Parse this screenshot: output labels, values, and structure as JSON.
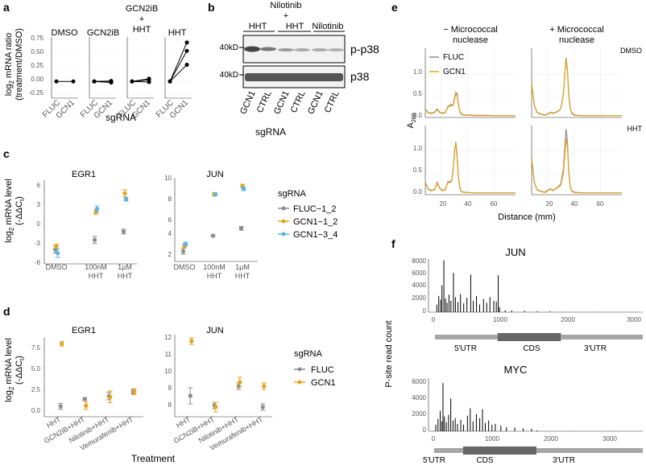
{
  "colors": {
    "fluc": "#8c8c8c",
    "gcn1": "#e6a219",
    "gcn13": "#56b4e9",
    "axis": "#333333",
    "grid": "#ebebeb"
  },
  "panel_a": {
    "letter": "a",
    "ylabel_line1": "log",
    "ylabel_sub": "2",
    "ylabel_line1b": " mRNA ratio",
    "ylabel_line2": "(treatment/DMSO)",
    "xlabel": "sgRNA",
    "conditions": [
      "DMSO",
      "GCN2iB",
      "GCN2iB",
      "+",
      "HHT",
      "HHT"
    ],
    "ticklabels": [
      "FLUC",
      "GCN1"
    ],
    "yticks": [
      "0.75",
      "0.50",
      "0.25",
      "0.00",
      "-0.25"
    ]
  },
  "panel_b": {
    "letter": "b",
    "header_top": "Nilotinib",
    "header_plus": "+",
    "groups": [
      "HHT",
      "HHT",
      "Nilotinib"
    ],
    "size_top": "40kD",
    "size_bottom": "40kD",
    "band_top": "p-p38",
    "band_bottom": "p38",
    "lanes": [
      "GCN1",
      "CTRL",
      "GCN1",
      "CTRL",
      "GCN1",
      "CTRL"
    ],
    "xlabel": "sgRNA"
  },
  "panel_c": {
    "letter": "c",
    "titles": [
      "EGR1",
      "JUN"
    ],
    "ylabel_line1": "log",
    "ylabel_sub": "2",
    "ylabel_line1b": " mRNA level",
    "ylabel_line2": "(-ΔΔC",
    "ylabel_line2_sub": "t",
    "ylabel_line2_end": ")",
    "categories": [
      "DMSO",
      "100nM",
      "1μM"
    ],
    "categories_line2": [
      "",
      "HHT",
      "HHT"
    ],
    "left_yticks": [
      "6",
      "3",
      "0",
      "-3",
      "-6"
    ],
    "right_yticks": [
      "10",
      "8",
      "6",
      "4",
      "2"
    ],
    "legend_title": "sgRNA",
    "legend": [
      "FLUC−1_2",
      "GCN1−1_2",
      "GCN1−3_4"
    ]
  },
  "panel_d": {
    "letter": "d",
    "titles": [
      "EGR1",
      "JUN"
    ],
    "ylabel_line1": "log",
    "ylabel_sub": "2",
    "ylabel_line1b": " mRNA level",
    "ylabel_line2": "(-ΔΔC",
    "ylabel_line2_sub": "t",
    "ylabel_line2_end": ")",
    "categories": [
      "HHT",
      "GCN2iB+HHT",
      "Nilotinib+HHT",
      "Vemurafenib+HHT"
    ],
    "left_yticks": [
      "7.5",
      "5.0",
      "2.5",
      "0.0"
    ],
    "right_yticks": [
      "12",
      "11",
      "10",
      "9",
      "8"
    ],
    "xlabel": "Treatment",
    "legend_title": "sgRNA",
    "legend": [
      "FLUC",
      "GCN1"
    ]
  },
  "panel_e": {
    "letter": "e",
    "col_titles": [
      "− Micrococcal",
      "+ Micrococcal"
    ],
    "col_titles_line2": [
      "nuclease",
      "nuclease"
    ],
    "row_labels": [
      "DMSO",
      "HHT"
    ],
    "ylabel": "A",
    "ylabel_sub": "260",
    "xlabel": "Distance (mm)",
    "yticks": [
      "1.0",
      "0.5",
      "0.0"
    ],
    "yticks_top": [
      "1.0",
      "0.5",
      "0.0"
    ],
    "xticks": [
      "20",
      "40",
      "60"
    ],
    "legend": [
      "FLUC",
      "GCN1"
    ]
  },
  "panel_f": {
    "letter": "f",
    "ylabel": "P-site read count",
    "jun": {
      "title": "JUN",
      "yticks": [
        "8000",
        "6000",
        "4000",
        "2000",
        "0"
      ],
      "xticks": [
        "0",
        "1000",
        "2000",
        "3000"
      ],
      "regions": [
        "5′UTR",
        "CDS",
        "3′UTR"
      ]
    },
    "myc": {
      "title": "MYC",
      "yticks": [
        "6000",
        "4000",
        "2000",
        "0"
      ],
      "xticks": [
        "0",
        "1000",
        "2000",
        "3000"
      ],
      "regions": [
        "5′UTR",
        "CDS",
        "3′UTR"
      ]
    }
  },
  "chart_data": [
    {
      "type": "line",
      "panel": "a",
      "ylabel": "log2 mRNA ratio (treatment/DMSO)",
      "xlabel": "sgRNA",
      "ylim": [
        -0.3,
        0.8
      ],
      "groups": [
        {
          "condition": "DMSO",
          "categories": [
            "FLUC",
            "GCN1"
          ],
          "replicates": [
            [
              0.0,
              0.0
            ]
          ]
        },
        {
          "condition": "GCN2iB",
          "categories": [
            "FLUC",
            "GCN1"
          ],
          "replicates": [
            [
              0.0,
              0.01
            ],
            [
              0.0,
              -0.02
            ],
            [
              0.0,
              0.0
            ]
          ]
        },
        {
          "condition": "GCN2iB + HHT",
          "categories": [
            "FLUC",
            "GCN1"
          ],
          "replicates": [
            [
              0.0,
              0.03
            ],
            [
              0.0,
              -0.01
            ],
            [
              0.0,
              0.05
            ]
          ]
        },
        {
          "condition": "HHT",
          "categories": [
            "FLUC",
            "GCN1"
          ],
          "replicates": [
            [
              0.0,
              0.7
            ],
            [
              0.0,
              0.55
            ],
            [
              0.0,
              0.3
            ]
          ]
        }
      ]
    },
    {
      "type": "scatter",
      "panel": "c",
      "title": "EGR1",
      "categories": [
        "DMSO",
        "100nM HHT",
        "1μM HHT"
      ],
      "ylim": [
        -6.5,
        7.5
      ],
      "series": [
        {
          "name": "FLUC−1_2",
          "values": [
            -4.1,
            -2.5,
            -1.1
          ],
          "errors": [
            0.6,
            0.6,
            0.4
          ]
        },
        {
          "name": "GCN1−1_2",
          "values": [
            -3.6,
            2.2,
            5.3
          ],
          "errors": [
            0.4,
            0.4,
            0.6
          ]
        },
        {
          "name": "GCN1−3_4",
          "values": [
            -4.7,
            2.7,
            4.3
          ],
          "errors": [
            0.7,
            0.5,
            0.3
          ]
        }
      ]
    },
    {
      "type": "scatter",
      "panel": "c",
      "title": "JUN",
      "categories": [
        "DMSO",
        "100nM HHT",
        "1μM HHT"
      ],
      "ylim": [
        1.2,
        10.3
      ],
      "series": [
        {
          "name": "FLUC−1_2",
          "values": [
            2.3,
            4.0,
            4.8
          ],
          "errors": [
            0.3,
            0.1,
            0.2
          ]
        },
        {
          "name": "GCN1−1_2",
          "values": [
            2.9,
            8.5,
            9.4
          ],
          "errors": [
            0.2,
            0.2,
            0.2
          ]
        },
        {
          "name": "GCN1−3_4",
          "values": [
            3.1,
            8.5,
            9.1
          ],
          "errors": [
            0.2,
            0.1,
            0.2
          ]
        }
      ]
    },
    {
      "type": "scatter",
      "panel": "d",
      "title": "EGR1",
      "categories": [
        "HHT",
        "GCN2iB+HHT",
        "Nilotinib+HHT",
        "Vemurafenib+HHT"
      ],
      "ylim": [
        -0.9,
        9.8
      ],
      "series": [
        {
          "name": "FLUC",
          "values": [
            0.5,
            1.5,
            1.9,
            2.5
          ],
          "errors": [
            0.4,
            0.2,
            0.5,
            0.3
          ]
        },
        {
          "name": "GCN1",
          "values": [
            9.0,
            0.6,
            1.8,
            2.5
          ],
          "errors": [
            0.3,
            0.5,
            0.8,
            0.4
          ]
        }
      ]
    },
    {
      "type": "scatter",
      "panel": "d",
      "title": "JUN",
      "categories": [
        "HHT",
        "GCN2iB+HHT",
        "Nilotinib+HHT",
        "Vemurafenib+HHT"
      ],
      "ylim": [
        7.2,
        12.3
      ],
      "series": [
        {
          "name": "FLUC",
          "values": [
            8.5,
            7.9,
            9.1,
            7.8
          ],
          "errors": [
            0.5,
            0.2,
            0.2,
            0.2
          ]
        },
        {
          "name": "GCN1",
          "values": [
            11.9,
            7.8,
            9.35,
            9.1
          ],
          "errors": [
            0.2,
            0.3,
            0.3,
            0.2
          ]
        }
      ]
    },
    {
      "type": "line",
      "panel": "e",
      "xlabel": "Distance (mm)",
      "ylabel": "A260",
      "xlim": [
        8,
        76
      ],
      "panels": [
        {
          "column": "− Micrococcal nuclease",
          "row": "DMSO",
          "x": [
            8,
            10,
            12,
            15,
            17,
            19,
            21,
            23,
            25,
            27,
            28,
            29,
            30,
            31,
            32,
            33,
            34,
            35,
            37,
            40,
            45,
            50,
            55,
            60,
            65,
            70,
            76
          ],
          "FLUC": [
            0.2,
            0.12,
            0.1,
            0.12,
            0.2,
            0.12,
            0.1,
            0.12,
            0.25,
            0.3,
            0.28,
            0.3,
            0.45,
            0.58,
            0.55,
            0.3,
            0.15,
            0.08,
            0.06,
            0.06,
            0.05,
            0.05,
            0.05,
            0.04,
            0.04,
            0.04,
            0.04
          ],
          "GCN1": [
            0.18,
            0.11,
            0.09,
            0.11,
            0.18,
            0.11,
            0.09,
            0.11,
            0.23,
            0.28,
            0.26,
            0.28,
            0.42,
            0.55,
            0.5,
            0.28,
            0.13,
            0.07,
            0.05,
            0.05,
            0.04,
            0.04,
            0.04,
            0.04,
            0.04,
            0.04,
            0.04
          ]
        },
        {
          "column": "+ Micrococcal nuclease",
          "row": "DMSO",
          "x": [
            8,
            10,
            12,
            15,
            18,
            20,
            22,
            24,
            26,
            28,
            30,
            32,
            33,
            34,
            35,
            36,
            37,
            38,
            40,
            43,
            50,
            55,
            60,
            65,
            70,
            76
          ],
          "FLUC": [
            0.8,
            0.3,
            0.12,
            0.08,
            0.06,
            0.08,
            0.12,
            0.1,
            0.12,
            0.15,
            0.2,
            0.55,
            1.0,
            1.38,
            1.1,
            0.55,
            0.25,
            0.12,
            0.06,
            0.05,
            0.04,
            0.04,
            0.04,
            0.04,
            0.04,
            0.04
          ],
          "GCN1": [
            0.78,
            0.28,
            0.11,
            0.07,
            0.05,
            0.07,
            0.11,
            0.09,
            0.11,
            0.14,
            0.2,
            0.56,
            1.02,
            1.32,
            1.08,
            0.5,
            0.22,
            0.1,
            0.05,
            0.04,
            0.04,
            0.04,
            0.04,
            0.04,
            0.04,
            0.04
          ]
        },
        {
          "column": "− Micrococcal nuclease",
          "row": "HHT",
          "x": [
            8,
            10,
            12,
            15,
            17,
            19,
            21,
            23,
            25,
            27,
            28,
            29,
            30,
            31,
            32,
            33,
            34,
            35,
            37,
            40,
            45,
            50,
            55,
            60,
            65,
            70,
            76
          ],
          "FLUC": [
            0.3,
            0.14,
            0.1,
            0.12,
            0.28,
            0.15,
            0.1,
            0.12,
            0.3,
            0.3,
            0.35,
            0.6,
            1.0,
            1.22,
            0.9,
            0.4,
            0.18,
            0.08,
            0.06,
            0.05,
            0.04,
            0.04,
            0.04,
            0.04,
            0.04,
            0.04,
            0.04
          ],
          "GCN1": [
            0.28,
            0.13,
            0.09,
            0.11,
            0.26,
            0.14,
            0.09,
            0.11,
            0.28,
            0.28,
            0.32,
            0.58,
            0.98,
            1.2,
            0.86,
            0.38,
            0.16,
            0.07,
            0.05,
            0.05,
            0.04,
            0.04,
            0.04,
            0.04,
            0.04,
            0.04,
            0.04
          ]
        },
        {
          "column": "+ Micrococcal nuclease",
          "row": "HHT",
          "x": [
            8,
            10,
            12,
            15,
            18,
            20,
            22,
            24,
            26,
            28,
            30,
            32,
            33,
            34,
            35,
            36,
            37,
            38,
            40,
            43,
            50,
            55,
            60,
            65,
            70,
            76
          ],
          "FLUC": [
            0.85,
            0.3,
            0.12,
            0.08,
            0.06,
            0.1,
            0.14,
            0.1,
            0.14,
            0.18,
            0.25,
            0.6,
            1.1,
            1.52,
            1.2,
            0.55,
            0.22,
            0.1,
            0.06,
            0.05,
            0.04,
            0.04,
            0.04,
            0.04,
            0.04,
            0.04
          ],
          "GCN1": [
            0.82,
            0.28,
            0.11,
            0.07,
            0.05,
            0.09,
            0.13,
            0.09,
            0.13,
            0.17,
            0.22,
            0.5,
            0.92,
            1.3,
            1.1,
            0.5,
            0.2,
            0.09,
            0.05,
            0.04,
            0.04,
            0.04,
            0.04,
            0.04,
            0.04,
            0.04
          ]
        }
      ]
    },
    {
      "type": "bar",
      "panel": "f",
      "title": "JUN",
      "ylabel": "P-site read count",
      "xlim": [
        -100,
        3250
      ],
      "ylim": [
        0,
        8500
      ],
      "regions": [
        {
          "name": "5′UTR",
          "start": 0,
          "end": 980
        },
        {
          "name": "CDS",
          "start": 980,
          "end": 1970
        },
        {
          "name": "3′UTR",
          "start": 1970,
          "end": 3250
        }
      ],
      "peaks": [
        {
          "x": 30,
          "y": 1200
        },
        {
          "x": 60,
          "y": 2600
        },
        {
          "x": 90,
          "y": 2000
        },
        {
          "x": 110,
          "y": 4300
        },
        {
          "x": 140,
          "y": 8300
        },
        {
          "x": 165,
          "y": 2200
        },
        {
          "x": 190,
          "y": 1500
        },
        {
          "x": 220,
          "y": 2800
        },
        {
          "x": 250,
          "y": 1800
        },
        {
          "x": 290,
          "y": 6300
        },
        {
          "x": 320,
          "y": 2400
        },
        {
          "x": 360,
          "y": 1600
        },
        {
          "x": 400,
          "y": 2900
        },
        {
          "x": 450,
          "y": 1400
        },
        {
          "x": 500,
          "y": 2300
        },
        {
          "x": 560,
          "y": 6000
        },
        {
          "x": 600,
          "y": 1800
        },
        {
          "x": 650,
          "y": 2600
        },
        {
          "x": 700,
          "y": 1200
        },
        {
          "x": 760,
          "y": 2100
        },
        {
          "x": 810,
          "y": 1500
        },
        {
          "x": 860,
          "y": 2400
        },
        {
          "x": 920,
          "y": 1800
        },
        {
          "x": 960,
          "y": 1700
        },
        {
          "x": 990,
          "y": 5900
        },
        {
          "x": 1010,
          "y": 800
        },
        {
          "x": 1100,
          "y": 300
        },
        {
          "x": 1200,
          "y": 250
        },
        {
          "x": 1400,
          "y": 200
        },
        {
          "x": 1600,
          "y": 150
        },
        {
          "x": 1800,
          "y": 120
        },
        {
          "x": 2000,
          "y": 60
        },
        {
          "x": 2500,
          "y": 30
        },
        {
          "x": 3000,
          "y": 20
        }
      ]
    },
    {
      "type": "bar",
      "panel": "f",
      "title": "MYC",
      "ylabel": "P-site read count",
      "xlim": [
        -100,
        3750
      ],
      "ylim": [
        0,
        6500
      ],
      "regions": [
        {
          "name": "5′UTR",
          "start": 0,
          "end": 520
        },
        {
          "name": "CDS",
          "start": 520,
          "end": 1840
        },
        {
          "name": "3′UTR",
          "start": 1840,
          "end": 3750
        }
      ],
      "peaks": [
        {
          "x": 30,
          "y": 800
        },
        {
          "x": 70,
          "y": 1500
        },
        {
          "x": 110,
          "y": 2500
        },
        {
          "x": 140,
          "y": 1200
        },
        {
          "x": 160,
          "y": 5900
        },
        {
          "x": 185,
          "y": 1800
        },
        {
          "x": 220,
          "y": 1100
        },
        {
          "x": 260,
          "y": 2000
        },
        {
          "x": 300,
          "y": 4000
        },
        {
          "x": 340,
          "y": 1300
        },
        {
          "x": 380,
          "y": 1600
        },
        {
          "x": 420,
          "y": 900
        },
        {
          "x": 480,
          "y": 1400
        },
        {
          "x": 530,
          "y": 800
        },
        {
          "x": 600,
          "y": 1900
        },
        {
          "x": 650,
          "y": 2800
        },
        {
          "x": 700,
          "y": 1200
        },
        {
          "x": 760,
          "y": 2100
        },
        {
          "x": 820,
          "y": 1600
        },
        {
          "x": 870,
          "y": 2700
        },
        {
          "x": 920,
          "y": 1000
        },
        {
          "x": 980,
          "y": 1300
        },
        {
          "x": 1040,
          "y": 800
        },
        {
          "x": 1100,
          "y": 900
        },
        {
          "x": 1200,
          "y": 700
        },
        {
          "x": 1300,
          "y": 500
        },
        {
          "x": 1450,
          "y": 450
        },
        {
          "x": 1600,
          "y": 350
        },
        {
          "x": 1750,
          "y": 300
        },
        {
          "x": 1850,
          "y": 100
        },
        {
          "x": 2500,
          "y": 30
        },
        {
          "x": 3200,
          "y": 20
        }
      ]
    }
  ]
}
